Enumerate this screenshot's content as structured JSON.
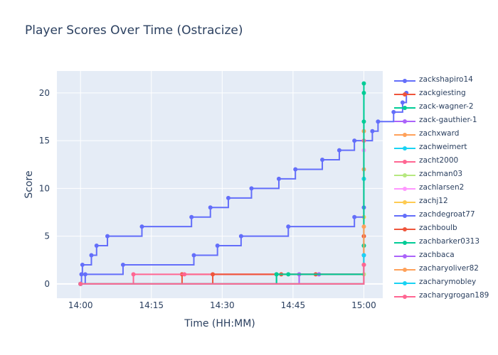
{
  "chart_data": {
    "type": "line",
    "title": "Player Scores Over Time (Ostracize)",
    "xlabel": "Time (HH:MM)",
    "ylabel": "Score",
    "x_tick_labels": [
      "14:00",
      "14:15",
      "14:30",
      "14:45",
      "15:00"
    ],
    "y_ticks": [
      0,
      5,
      10,
      15,
      20
    ],
    "xlim_minutes": [
      -5,
      64
    ],
    "ylim": [
      -1.5,
      22.3
    ],
    "grid": true,
    "legend_position": "right",
    "line_shape": "step-after",
    "colors": [
      "#636efa",
      "#EF553B",
      "#00cc96",
      "#ab63fa",
      "#FFA15A",
      "#19d3f3",
      "#FF6692",
      "#B6E880",
      "#FF97FF",
      "#FECB52"
    ],
    "series": [
      {
        "name": "zackshapiro14",
        "x": [
          0,
          0.2,
          0.4,
          2.3,
          3.4,
          5.7,
          13,
          23.5,
          27.5,
          31.3,
          36.2,
          42,
          45.5,
          51.2,
          54.8,
          58,
          61.8,
          63,
          66.3,
          68.2,
          69
        ],
        "y": [
          0,
          1,
          2,
          3,
          4,
          5,
          6,
          7,
          8,
          9,
          10,
          11,
          12,
          13,
          14,
          15,
          16,
          17,
          18,
          19,
          20
        ]
      },
      {
        "name": "zackgiesting",
        "x": [
          0,
          21.5,
          42.5,
          49.8,
          60
        ],
        "y": [
          0,
          1,
          1,
          1,
          2
        ]
      },
      {
        "name": "zack-wagner-2",
        "x": [
          0,
          41.5,
          60,
          60,
          60,
          60
        ],
        "y": [
          0,
          1,
          4,
          11,
          17,
          21
        ]
      },
      {
        "name": "zack-gauthier-1",
        "x": [
          0,
          46.3,
          50.5,
          60
        ],
        "y": [
          0,
          1,
          1,
          3
        ]
      },
      {
        "name": "zachxward",
        "x": [
          0,
          60,
          60
        ],
        "y": [
          0,
          12,
          16
        ]
      },
      {
        "name": "zachweimert",
        "x": [
          0,
          60
        ],
        "y": [
          0,
          11
        ]
      },
      {
        "name": "zacht2000",
        "x": [
          0,
          11.2,
          22,
          60,
          60
        ],
        "y": [
          0,
          1,
          1,
          2,
          15
        ]
      },
      {
        "name": "zachman03",
        "x": [
          0,
          60
        ],
        "y": [
          0,
          1
        ]
      },
      {
        "name": "zachlarsen2",
        "x": [
          0,
          60,
          60
        ],
        "y": [
          0,
          3,
          14
        ]
      },
      {
        "name": "zachj12",
        "x": [
          0,
          60
        ],
        "y": [
          0,
          7
        ]
      },
      {
        "name": "zachdegroat77",
        "x": [
          0,
          1,
          9,
          24,
          29,
          34,
          44,
          58,
          60
        ],
        "y": [
          0,
          1,
          2,
          3,
          4,
          5,
          6,
          7,
          8
        ]
      },
      {
        "name": "zachboulb",
        "x": [
          0,
          28,
          60
        ],
        "y": [
          0,
          1,
          5
        ]
      },
      {
        "name": "zachbarker0313",
        "x": [
          0,
          41.5,
          44,
          60,
          60
        ],
        "y": [
          0,
          1,
          1,
          4,
          20
        ]
      },
      {
        "name": "zachbaca",
        "x": [
          0,
          60
        ],
        "y": [
          0,
          3
        ]
      },
      {
        "name": "zacharyoliver82",
        "x": [
          0,
          60
        ],
        "y": [
          0,
          6
        ]
      },
      {
        "name": "zacharymobley",
        "x": [
          0,
          60
        ],
        "y": [
          0,
          3
        ]
      },
      {
        "name": "zacharygrogan189",
        "x": [
          0,
          60
        ],
        "y": [
          0,
          2
        ]
      }
    ]
  }
}
